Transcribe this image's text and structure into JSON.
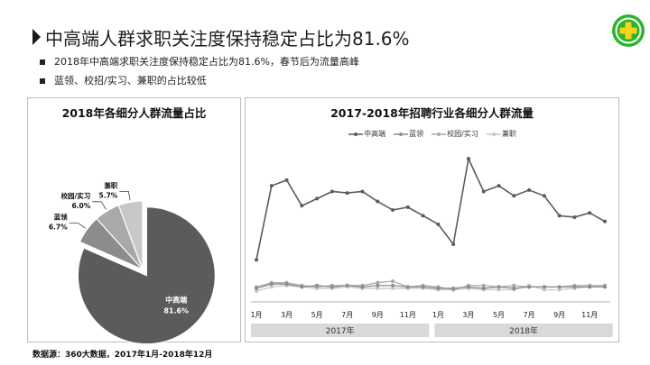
{
  "header": {
    "title": "中高端人群求职关注度保持稳定占比为81.6%",
    "bullets": [
      "2018年中高端求职关注度保持稳定占比为81.6%，春节后为流量高峰",
      "蓝领、校招/实习、兼职的占比较低"
    ]
  },
  "logo": {
    "icon": "plus-icon",
    "colors": {
      "green": "#2bb52a",
      "yellow": "#f7d21e"
    }
  },
  "source_note": "数据源：360大数据，2017年1月-2018年12月",
  "colors": {
    "zhonggaoduan": "#5b5b5b",
    "lanling": "#8c8c8c",
    "xiaoyuan": "#a9a9a9",
    "jianzhi": "#c8c8c8",
    "year_bar": "#d9d9d9"
  },
  "chart_data": [
    {
      "type": "pie",
      "title": "2018年各细分人群流量占比",
      "categories": [
        "中高端",
        "蓝领",
        "校园/实习",
        "兼职"
      ],
      "values": [
        81.6,
        6.7,
        6.0,
        5.7
      ],
      "labels": [
        "81.6%",
        "6.7%",
        "6.0%",
        "5.7%"
      ],
      "exploded": "中高端"
    },
    {
      "type": "line",
      "title": "2017-2018年招聘行业各细分人群流量",
      "legend_position": "top",
      "x": [
        "1月",
        "2月",
        "3月",
        "4月",
        "5月",
        "6月",
        "7月",
        "8月",
        "9月",
        "10月",
        "11月",
        "12月",
        "1月",
        "2月",
        "3月",
        "4月",
        "5月",
        "6月",
        "7月",
        "8月",
        "9月",
        "10月",
        "11月",
        "12月"
      ],
      "x_tick_labels": [
        "1月",
        "3月",
        "5月",
        "7月",
        "9月",
        "11月",
        "1月",
        "3月",
        "5月",
        "7月",
        "9月",
        "11月"
      ],
      "x_groups": [
        "2017年",
        "2018年"
      ],
      "grid": false,
      "ylim": [
        0,
        100
      ],
      "series": [
        {
          "name": "中高端",
          "values": [
            27,
            79,
            83,
            65,
            70,
            75,
            74,
            75,
            68,
            62,
            64,
            58,
            52,
            38,
            98,
            75,
            79,
            72,
            76,
            72,
            58,
            57,
            60,
            54
          ]
        },
        {
          "name": "蓝领",
          "values": [
            7,
            10,
            10,
            8,
            9,
            8,
            9,
            8,
            9,
            9,
            8,
            8,
            7,
            7,
            8,
            7,
            8,
            7,
            8,
            8,
            8,
            8,
            8,
            8
          ]
        },
        {
          "name": "校园/实习",
          "values": [
            8,
            11,
            11,
            9,
            8,
            9,
            9,
            9,
            11,
            12,
            8,
            9,
            8,
            6,
            9,
            9,
            8,
            9,
            8,
            8,
            8,
            9,
            9,
            9
          ]
        },
        {
          "name": "兼职",
          "values": [
            5,
            8,
            9,
            8,
            7,
            7,
            8,
            7,
            7,
            7,
            7,
            7,
            6,
            6,
            7,
            6,
            6,
            6,
            9,
            6,
            6,
            7,
            8,
            8
          ]
        }
      ]
    }
  ]
}
